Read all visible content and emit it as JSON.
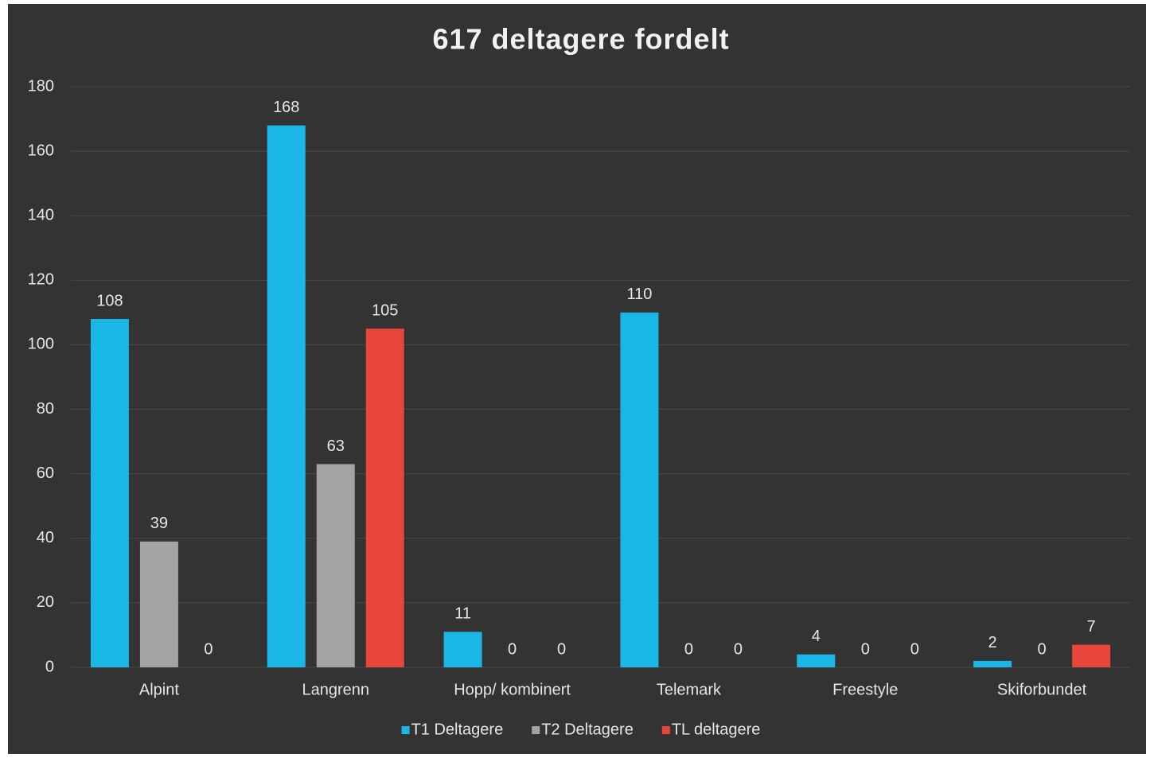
{
  "chart_data": {
    "type": "bar",
    "title": "617 deltagere fordelt",
    "categories": [
      "Alpint",
      "Langrenn",
      "Hopp/ kombinert",
      "Telemark",
      "Freestyle",
      "Skiforbundet"
    ],
    "series": [
      {
        "name": "T1 Deltagere",
        "color": "#19b6e6",
        "values": [
          108,
          168,
          11,
          110,
          4,
          2
        ]
      },
      {
        "name": "T2 Deltagere",
        "color": "#a3a3a3",
        "values": [
          39,
          63,
          0,
          0,
          0,
          0
        ]
      },
      {
        "name": "TL deltagere",
        "color": "#e8453b",
        "values": [
          0,
          105,
          0,
          0,
          0,
          7
        ]
      }
    ],
    "ylim": [
      0,
      180
    ],
    "yticks": [
      0,
      20,
      40,
      60,
      80,
      100,
      120,
      140,
      160,
      180
    ],
    "grid": true,
    "legend": "bottom"
  }
}
